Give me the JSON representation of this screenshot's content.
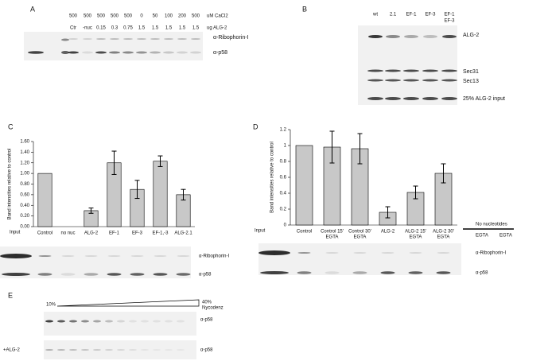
{
  "panel_a": {
    "letter": "A",
    "row1": [
      "500",
      "500",
      "500",
      "500",
      "500",
      "0",
      "50",
      "100",
      "200",
      "500"
    ],
    "row1_unit": "uM CaCl2",
    "row2": [
      "Ctr",
      "-nuc",
      "0.15",
      "0.3",
      "0.75",
      "1.5",
      "1.5",
      "1.5",
      "1.5",
      "1.5"
    ],
    "row2_unit": "ug ALG-2",
    "band_labels": [
      "α-Ribophorin-I",
      "α-p58"
    ]
  },
  "panel_b": {
    "letter": "B",
    "lanes": [
      "wt",
      "2.1",
      "EF-1",
      "EF-3",
      "EF-1"
    ],
    "lane5_line2": "EF-3",
    "band_labels": [
      "ALG-2",
      "Sec31",
      "Sec13",
      "25% ALG-2 input"
    ]
  },
  "chart_data": [
    {
      "type": "bar",
      "label": "C",
      "y_label": "Band intensities relative to control",
      "categories": [
        "Control",
        "no nuc",
        "ALG-2",
        "EF-1",
        "EF-3",
        "EF-1,-3",
        "ALG-2.1"
      ],
      "values": [
        1.0,
        0,
        0.3,
        1.2,
        0.7,
        1.23,
        0.6
      ],
      "errors": [
        null,
        null,
        0.05,
        0.22,
        0.17,
        0.1,
        0.1
      ],
      "color": "#c8c8c8",
      "ylim": [
        0,
        1.6
      ],
      "yticks": [
        {
          "value": 0,
          "label": "0.00"
        },
        {
          "value": 0.2,
          "label": "0.20"
        },
        {
          "value": 0.4,
          "label": "0.40"
        },
        {
          "value": 0.6,
          "label": "0.60"
        },
        {
          "value": 0.8,
          "label": "0.80"
        },
        {
          "value": 1.0,
          "label": "1.00"
        },
        {
          "value": 1.2,
          "label": "1.20"
        },
        {
          "value": 1.4,
          "label": "1.40"
        },
        {
          "value": 1.6,
          "label": "1.60"
        }
      ],
      "input": "Input",
      "band_labels": [
        "α-Ribophorin-I",
        "α-p58"
      ]
    },
    {
      "type": "bar",
      "label": "D",
      "y_label": "Band intensities relative to control",
      "categories": [
        "Control",
        "Control 15'",
        "Control 30'",
        "ALG-2",
        "ALG-2 15'",
        "ALG-2 30'"
      ],
      "sublabels": [
        null,
        "EGTA",
        "EGTA",
        null,
        "EGTA",
        "EGTA"
      ],
      "values": [
        1.0,
        0.98,
        0.96,
        0.16,
        0.41,
        0.65
      ],
      "errors": [
        null,
        0.2,
        0.19,
        0.07,
        0.08,
        0.12
      ],
      "color": "#c8c8c8",
      "ylim": [
        0,
        1.2
      ],
      "yticks": [
        0,
        0.2,
        0.4,
        0.6,
        0.8,
        1,
        1.2
      ],
      "input": "Input",
      "band_labels": [
        "α-Ribophorin-I",
        "α-p58"
      ],
      "extra": {
        "title": "No nucleotides",
        "lanes": [
          "EGTA",
          "EGTA"
        ]
      }
    }
  ],
  "panel_e": {
    "letter": "E",
    "low": "10%",
    "high": "40%",
    "high_unit": "Nycodenz",
    "band_label_1": "α-p58",
    "condition": "+ALG-2",
    "band_label_2": "α-p58"
  }
}
